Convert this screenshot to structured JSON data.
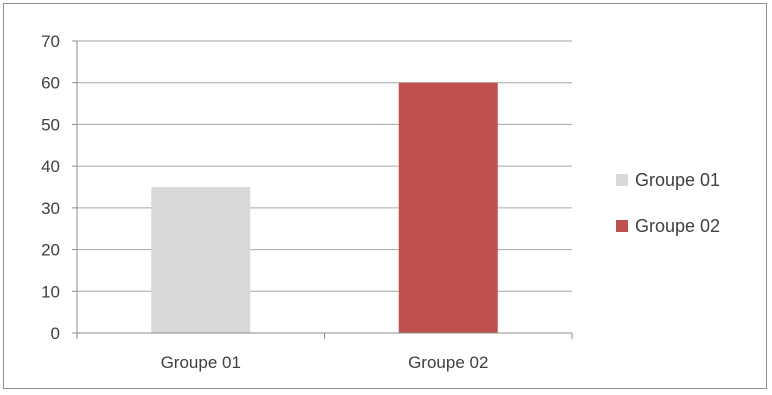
{
  "chart_data": {
    "type": "bar",
    "categories": [
      "Groupe 01",
      "Groupe 02"
    ],
    "values": [
      35,
      60
    ],
    "colors": [
      "#d9d9d9",
      "#c0504d"
    ],
    "ylim": [
      0,
      70
    ],
    "yticks": [
      0,
      10,
      20,
      30,
      40,
      50,
      60,
      70
    ],
    "grid": true,
    "legend": {
      "position": "right",
      "entries": [
        {
          "label": "Groupe 01",
          "color": "#d9d9d9"
        },
        {
          "label": "Groupe 02",
          "color": "#c0504d"
        }
      ]
    }
  }
}
